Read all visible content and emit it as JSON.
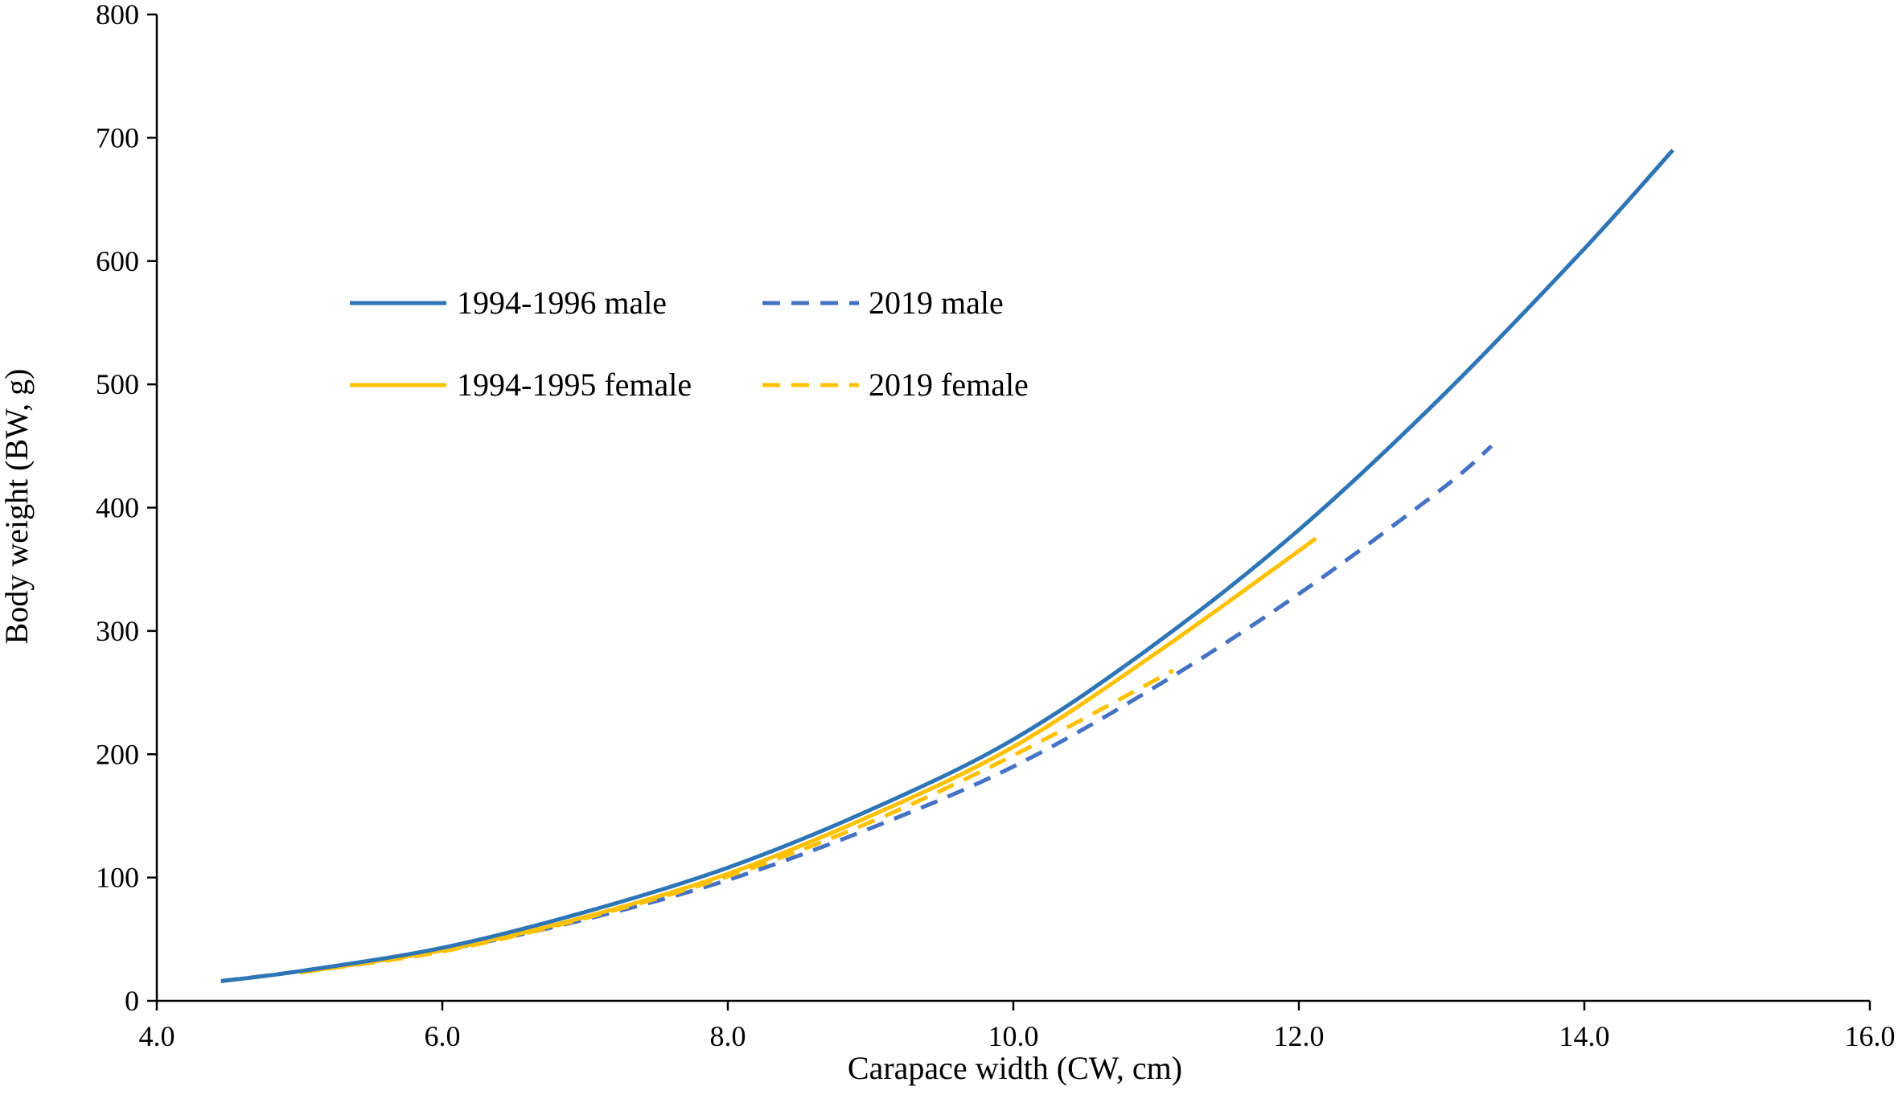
{
  "chart_data": {
    "type": "line",
    "title": "",
    "xlabel": "Carapace width (CW, cm)",
    "ylabel": "Body weight (BW, g)",
    "xlim": [
      4.0,
      16.0
    ],
    "ylim": [
      0,
      800
    ],
    "xticks": [
      "4.0",
      "6.0",
      "8.0",
      "10.0",
      "12.0",
      "14.0",
      "16.0"
    ],
    "yticks": [
      "0",
      "100",
      "200",
      "300",
      "400",
      "500",
      "600",
      "700",
      "800"
    ],
    "grid": false,
    "legend_position": "upper-left",
    "series": [
      {
        "name": "1994-1996 male",
        "color": "#2E75B6",
        "style": "solid",
        "x": [
          4.45,
          5.0,
          6.0,
          7.0,
          8.0,
          9.0,
          10.0,
          11.0,
          12.0,
          13.0,
          14.0,
          14.62
        ],
        "y": [
          16,
          24,
          43,
          72,
          108,
          155,
          212,
          290,
          382,
          490,
          610,
          690
        ]
      },
      {
        "name": "2019 male",
        "color": "#4472C4",
        "style": "dashed",
        "x": [
          4.45,
          5.0,
          6.0,
          7.0,
          8.0,
          9.0,
          10.0,
          11.0,
          12.0,
          13.0,
          13.35
        ],
        "y": [
          16,
          24,
          41,
          66,
          98,
          140,
          190,
          255,
          330,
          415,
          450
        ]
      },
      {
        "name": "1994-1995 female",
        "color": "#FFC000",
        "style": "solid",
        "x": [
          5.0,
          6.0,
          7.0,
          8.0,
          9.0,
          10.0,
          11.0,
          12.12
        ],
        "y": [
          23,
          41,
          68,
          103,
          150,
          206,
          282,
          375
        ]
      },
      {
        "name": "2019 female",
        "color": "#FFC000",
        "style": "dashed",
        "x": [
          5.0,
          6.0,
          7.0,
          8.0,
          9.0,
          10.0,
          11.12
        ],
        "y": [
          23,
          40,
          67,
          101,
          145,
          199,
          268
        ]
      }
    ]
  }
}
